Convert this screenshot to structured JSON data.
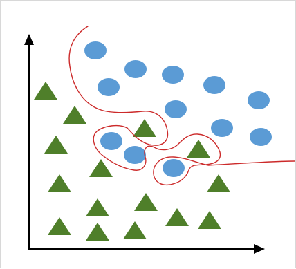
{
  "diagram": {
    "type": "classification-overfitting-scatter",
    "colors": {
      "circle": "#5b9bd5",
      "triangle": "#4f7f2a",
      "boundary": "#cc2a2a",
      "axes": "#000000",
      "border": "#d8d8d8"
    },
    "class_a_shape": "circle",
    "class_b_shape": "triangle"
  }
}
